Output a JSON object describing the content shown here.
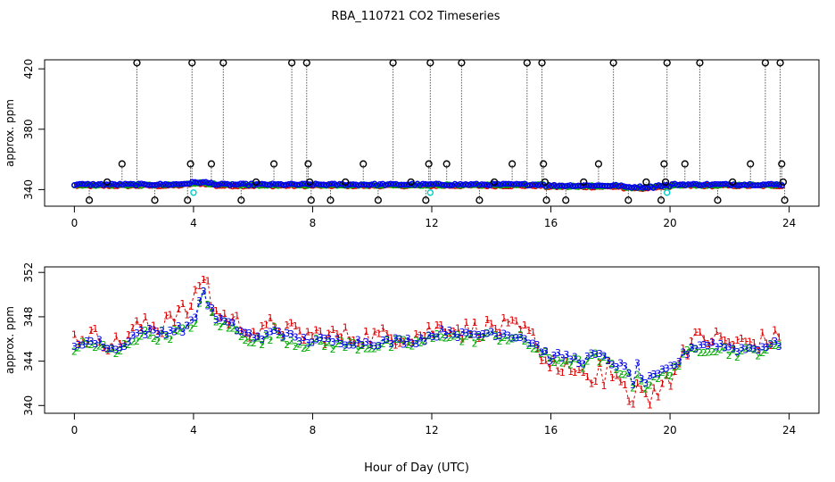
{
  "figure": {
    "title": "RBA_110721  CO2 Timeseries",
    "xlabel": "Hour of Day (UTC)"
  },
  "chart_data": [
    {
      "type": "scatter",
      "panel": "top",
      "ylabel": "approx. ppm",
      "xlim": [
        -1,
        25
      ],
      "ylim": [
        329,
        426
      ],
      "xticks": [
        0,
        4,
        8,
        12,
        16,
        20,
        24
      ],
      "yticks": [
        340,
        380,
        420
      ],
      "grid": false,
      "description": "Series near 343 ppm in red, green, blue, cyan with black outlier circles and dotted vertical lines",
      "series": [
        {
          "name": "red",
          "color": "#dd0000"
        },
        {
          "name": "green",
          "color": "#00aa00"
        },
        {
          "name": "blue",
          "color": "#0000ee"
        },
        {
          "name": "cyan",
          "color": "#00cccc",
          "x": [
            4.0,
            11.95,
            19.9
          ],
          "y": [
            338,
            338,
            338
          ]
        },
        {
          "name": "outliers",
          "color": "#000000",
          "points": [
            [
              0.5,
              333
            ],
            [
              1.1,
              345
            ],
            [
              1.6,
              357
            ],
            [
              2.1,
              424
            ],
            [
              2.7,
              333
            ],
            [
              3.8,
              333
            ],
            [
              3.9,
              357
            ],
            [
              3.95,
              424
            ],
            [
              4.6,
              357
            ],
            [
              5.0,
              424
            ],
            [
              5.6,
              333
            ],
            [
              6.1,
              345
            ],
            [
              6.7,
              357
            ],
            [
              7.3,
              424
            ],
            [
              7.8,
              424
            ],
            [
              7.85,
              357
            ],
            [
              7.9,
              345
            ],
            [
              7.95,
              333
            ],
            [
              8.6,
              333
            ],
            [
              9.1,
              345
            ],
            [
              9.7,
              357
            ],
            [
              10.2,
              333
            ],
            [
              10.7,
              424
            ],
            [
              11.3,
              345
            ],
            [
              11.8,
              333
            ],
            [
              11.9,
              357
            ],
            [
              11.95,
              424
            ],
            [
              12.5,
              357
            ],
            [
              13.0,
              424
            ],
            [
              13.6,
              333
            ],
            [
              14.1,
              345
            ],
            [
              14.7,
              357
            ],
            [
              15.2,
              424
            ],
            [
              15.7,
              424
            ],
            [
              15.75,
              357
            ],
            [
              15.8,
              345
            ],
            [
              15.85,
              333
            ],
            [
              16.5,
              333
            ],
            [
              17.1,
              345
            ],
            [
              17.6,
              357
            ],
            [
              18.1,
              424
            ],
            [
              18.6,
              333
            ],
            [
              19.2,
              345
            ],
            [
              19.7,
              333
            ],
            [
              19.8,
              357
            ],
            [
              19.85,
              345
            ],
            [
              19.9,
              424
            ],
            [
              20.5,
              357
            ],
            [
              21.0,
              424
            ],
            [
              21.6,
              333
            ],
            [
              22.1,
              345
            ],
            [
              22.7,
              357
            ],
            [
              23.2,
              424
            ],
            [
              23.7,
              424
            ],
            [
              23.75,
              357
            ],
            [
              23.8,
              345
            ],
            [
              23.85,
              333
            ]
          ]
        }
      ]
    },
    {
      "type": "scatter",
      "panel": "bottom",
      "ylabel": "approx. ppm",
      "xlim": [
        -1,
        25
      ],
      "ylim": [
        339.3,
        352.5
      ],
      "xticks": [
        0,
        4,
        8,
        12,
        16,
        20,
        24
      ],
      "yticks": [
        340,
        344,
        348,
        352
      ],
      "grid": false,
      "marker_labels": {
        "series1": "1",
        "series2": "2",
        "series3": "3"
      },
      "series": [
        {
          "name": "1",
          "color": "#dd0000",
          "offset": 0.5,
          "noise": 0.9
        },
        {
          "name": "2",
          "color": "#00aa00",
          "offset": -0.3,
          "noise": 0.5
        },
        {
          "name": "3",
          "color": "#0000ee",
          "offset": 0.0,
          "noise": 0.35
        }
      ],
      "base_curve": {
        "x": [
          0,
          0.3,
          0.8,
          1.2,
          1.5,
          1.8,
          2.2,
          2.8,
          3.3,
          3.7,
          4.0,
          4.15,
          4.3,
          4.45,
          4.7,
          5.2,
          5.8,
          6.3,
          6.7,
          7.2,
          7.7,
          8.0,
          10.0,
          11.5,
          12.0,
          12.3,
          12.6,
          13.0,
          13.5,
          14.0,
          14.5,
          15.0,
          15.3,
          15.6,
          16.0,
          16.3,
          16.7,
          17.0,
          17.5,
          18.0,
          18.5,
          18.8,
          18.9,
          19.1,
          19.4,
          19.7,
          20.0,
          20.3,
          20.7,
          21.0,
          21.5,
          22.0,
          22.5,
          23.0,
          23.5,
          23.8
        ],
        "y": [
          345.5,
          345.8,
          345.7,
          345.2,
          345.0,
          346.0,
          346.7,
          346.6,
          346.8,
          347.0,
          347.5,
          349.0,
          350.5,
          349.5,
          348.0,
          347.3,
          346.5,
          345.9,
          347.0,
          346.2,
          345.9,
          345.9,
          345.7,
          345.9,
          346.3,
          346.6,
          346.8,
          346.3,
          346.4,
          346.6,
          346.5,
          346.2,
          345.8,
          345.3,
          344.2,
          344.5,
          344.3,
          344.0,
          344.6,
          344.0,
          343.3,
          342.0,
          343.5,
          342.1,
          342.4,
          342.9,
          343.4,
          344.1,
          345.2,
          345.5,
          345.6,
          345.2,
          345.1,
          345.3,
          345.5,
          345.6
        ]
      }
    }
  ]
}
